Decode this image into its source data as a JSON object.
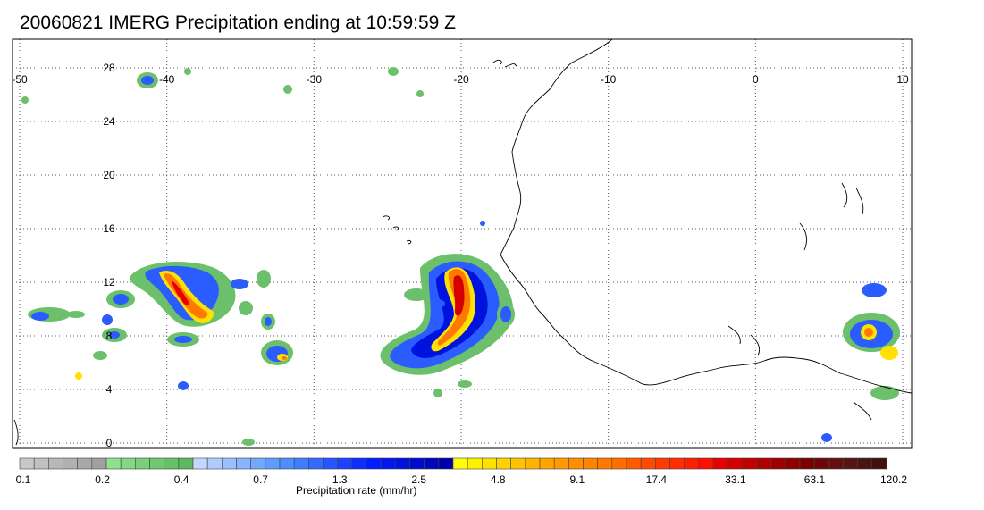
{
  "title": "20060821 IMERG Precipitation ending at 10:59:59 Z",
  "map": {
    "lon_range": [
      -50,
      10
    ],
    "lat_range": [
      -0.5,
      30.5
    ],
    "lon_ticks": [
      -50,
      -40,
      -30,
      -20,
      -10,
      0,
      10
    ],
    "lat_ticks": [
      0,
      4,
      8,
      12,
      16,
      20,
      24,
      28
    ],
    "lon_tick_labels": [
      "-50",
      "-40",
      "-30",
      "-20",
      "-10",
      "0",
      "10"
    ],
    "lat_tick_labels": [
      "0",
      "4",
      "8",
      "12",
      "16",
      "20",
      "24",
      "28"
    ],
    "gridlines": "dotted",
    "land_features": [
      "West African coastline",
      "Northwest Africa"
    ],
    "precip_systems": [
      {
        "name": "tropical wave near 20W",
        "lon": -19.7,
        "lat": 10.5,
        "peak": "17.4-33.1 mm/hr"
      },
      {
        "name": "cluster near 40W",
        "lon": -39.5,
        "lat": 11.0,
        "peak": "9.1-17.4 mm/hr"
      },
      {
        "name": "western cluster near 48W",
        "lon": -47.5,
        "lat": 9.8,
        "peak": "0.4-0.7 mm/hr"
      },
      {
        "name": "cell near 31W",
        "lon": -31.0,
        "lat": 7.0,
        "peak": "4.8-9.1 mm/hr"
      },
      {
        "name": "convection near 8E",
        "lon": 8.0,
        "lat": 8.5,
        "peak": "9.1-17.4 mm/hr"
      }
    ]
  },
  "colorbar": {
    "label": "Precipitation rate (mm/hr)",
    "tick_labels": [
      "0.1",
      "0.2",
      "0.4",
      "0.7",
      "1.3",
      "2.5",
      "4.8",
      "9.1",
      "17.4",
      "33.1",
      "63.1",
      "120.2"
    ],
    "colors": [
      "#c8c8c8",
      "#c0c0c0",
      "#b8b8b8",
      "#b0b0b0",
      "#a8a8a8",
      "#a0a0a0",
      "#8fe08f",
      "#84d884",
      "#7ad07a",
      "#70c870",
      "#66c066",
      "#5cb85c",
      "#c4d8ff",
      "#b0ccff",
      "#9cc0ff",
      "#88b4ff",
      "#74a8ff",
      "#609cff",
      "#4c90ff",
      "#3f7dff",
      "#336aff",
      "#2656ff",
      "#1a42ff",
      "#0e2eff",
      "#001eff",
      "#0018ee",
      "#0012dd",
      "#000ccc",
      "#0006bb",
      "#0000aa",
      "#ffff00",
      "#fff000",
      "#ffe100",
      "#ffd200",
      "#ffc300",
      "#ffb400",
      "#ffa500",
      "#ff9a00",
      "#ff8f00",
      "#ff8400",
      "#ff7900",
      "#ff6e00",
      "#ff5a00",
      "#ff4b00",
      "#ff3c00",
      "#ff2d00",
      "#ff1e00",
      "#ff0f00",
      "#e60000",
      "#d40000",
      "#c20000",
      "#b00000",
      "#9e0000",
      "#8c0000",
      "#7a0000",
      "#6e0808",
      "#621010",
      "#561414",
      "#4a1414",
      "#3e1010"
    ]
  }
}
